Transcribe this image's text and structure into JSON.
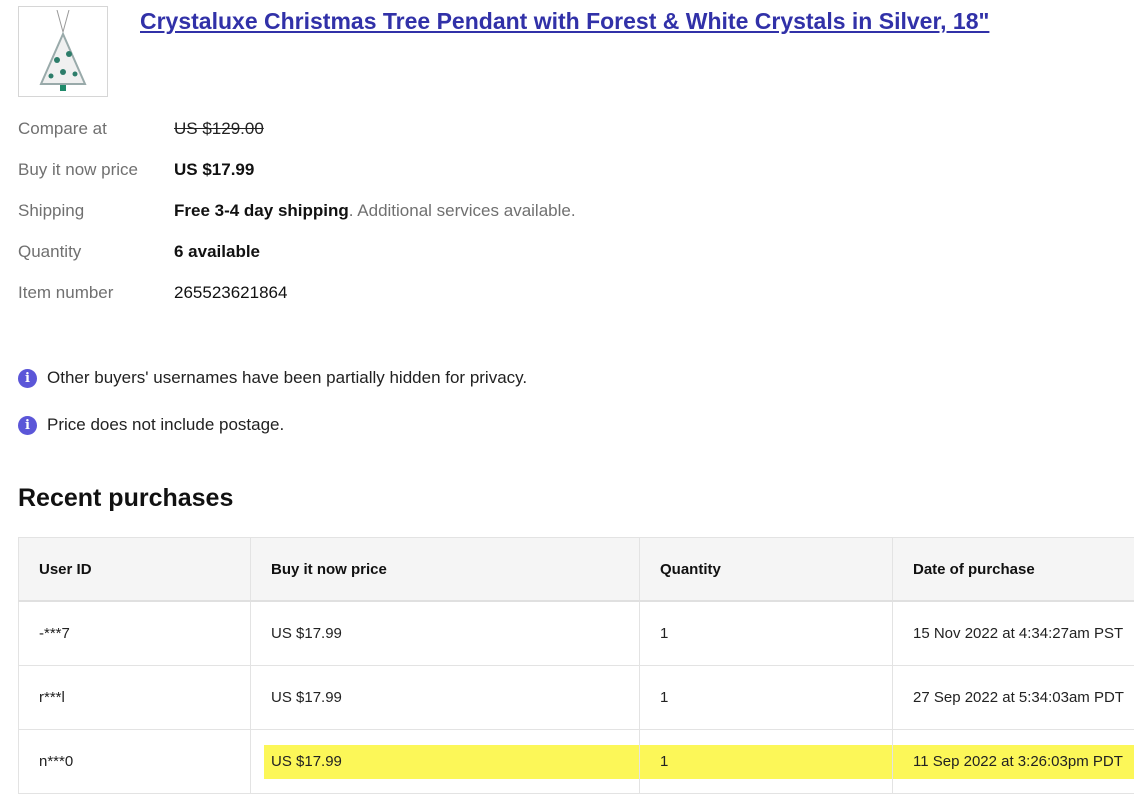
{
  "product": {
    "title": "Crystaluxe Christmas Tree Pendant with Forest & White Crystals in Silver, 18\"",
    "image": "christmas-tree-pendant"
  },
  "details": [
    {
      "label": "Compare at",
      "value": "US $129.00"
    },
    {
      "label": "Buy it now price",
      "value": "US $17.99"
    },
    {
      "label": "Shipping",
      "value": "Free 3-4 day shipping",
      "extra": ". Additional services available."
    },
    {
      "label": "Quantity",
      "value": "6 available"
    },
    {
      "label": "Item number",
      "value": "265523621864"
    }
  ],
  "notes": [
    "Other buyers' usernames have been partially hidden for privacy.",
    "Price does not include postage."
  ],
  "recent": {
    "heading": "Recent purchases",
    "columns": [
      "User ID",
      "Buy it now price",
      "Quantity",
      "Date of purchase"
    ],
    "rows": [
      [
        "-***7",
        "US $17.99",
        "1",
        "15 Nov 2022 at 4:34:27am PST"
      ],
      [
        "r***l",
        "US $17.99",
        "1",
        "27 Sep 2022 at 5:34:03am PDT"
      ],
      [
        "n***0",
        "US $17.99",
        "1",
        "11 Sep 2022 at 3:26:03pm PDT"
      ]
    ],
    "highlighted_row": 2,
    "highlight_color": "#fcf758"
  },
  "colors": {
    "link": "#3131a8",
    "info": "#5b56d8"
  }
}
